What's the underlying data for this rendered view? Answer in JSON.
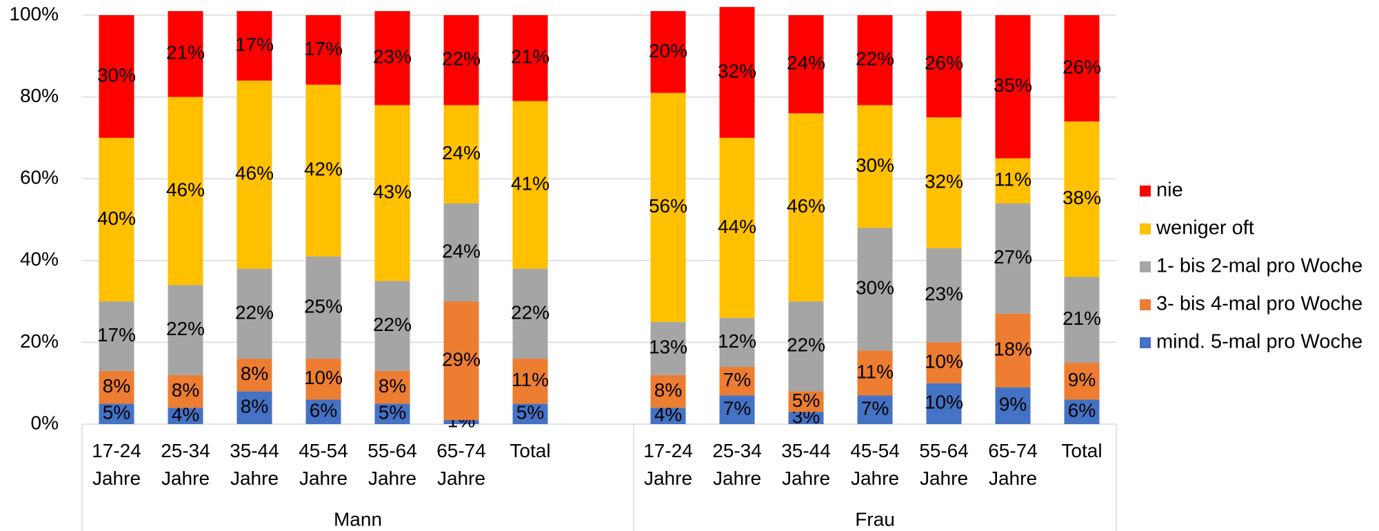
{
  "chart_data": {
    "type": "stacked_bar",
    "groups": [
      {
        "name": "Mann",
        "categories": [
          "17-24 Jahre",
          "25-34 Jahre",
          "35-44 Jahre",
          "45-54 Jahre",
          "55-64 Jahre",
          "65-74 Jahre",
          "Total"
        ]
      },
      {
        "name": "Frau",
        "categories": [
          "17-24 Jahre",
          "25-34 Jahre",
          "35-44 Jahre",
          "45-54 Jahre",
          "55-64 Jahre",
          "65-74 Jahre",
          "Total"
        ]
      }
    ],
    "series": [
      {
        "name": "mind. 5-mal pro Woche",
        "color": "#4472c4",
        "values": [
          5,
          4,
          8,
          6,
          5,
          1,
          5,
          4,
          7,
          3,
          7,
          10,
          9,
          6
        ],
        "value_labels": [
          "5%",
          "4%",
          "8%",
          "6%",
          "5%",
          "1%",
          "5%",
          "4%",
          "7%",
          "3%",
          "7%",
          "10%",
          "9%",
          "6%"
        ]
      },
      {
        "name": "3- bis 4-mal pro Woche",
        "color": "#ed7d31",
        "values": [
          8,
          8,
          8,
          10,
          8,
          29,
          11,
          8,
          7,
          5,
          11,
          10,
          18,
          9
        ],
        "value_labels": [
          "8%",
          "8%",
          "8%",
          "10%",
          "8%",
          "29%",
          "11%",
          "8%",
          "7%",
          "5%",
          "11%",
          "10%",
          "18%",
          "9%"
        ]
      },
      {
        "name": "1- bis 2-mal pro Woche",
        "color": "#a5a5a5",
        "values": [
          17,
          22,
          22,
          25,
          22,
          24,
          22,
          13,
          12,
          22,
          30,
          23,
          27,
          21
        ],
        "value_labels": [
          "17%",
          "22%",
          "22%",
          "25%",
          "22%",
          "24%",
          "22%",
          "13%",
          "12%",
          "22%",
          "30%",
          "23%",
          "27%",
          "21%"
        ]
      },
      {
        "name": "weniger oft",
        "color": "#ffc000",
        "values": [
          40,
          46,
          46,
          42,
          43,
          24,
          41,
          56,
          44,
          46,
          30,
          32,
          11,
          38
        ],
        "value_labels": [
          "40%",
          "46%",
          "46%",
          "42%",
          "43%",
          "24%",
          "41%",
          "56%",
          "44%",
          "46%",
          "30%",
          "32%",
          "11%",
          "38%"
        ]
      },
      {
        "name": "nie",
        "color": "#ff0000",
        "values": [
          30,
          21,
          17,
          17,
          23,
          22,
          21,
          20,
          32,
          24,
          22,
          26,
          35,
          26
        ],
        "value_labels": [
          "30%",
          "21%",
          "17%",
          "17%",
          "23%",
          "22%",
          "21%",
          "20%",
          "32%",
          "24%",
          "22%",
          "26%",
          "35%",
          "26%"
        ]
      }
    ],
    "ylim": [
      0,
      100
    ],
    "yticks": [
      {
        "value": 0,
        "label": "0%"
      },
      {
        "value": 20,
        "label": "20%"
      },
      {
        "value": 40,
        "label": "40%"
      },
      {
        "value": 60,
        "label": "60%"
      },
      {
        "value": 80,
        "label": "80%"
      },
      {
        "value": 100,
        "label": "100%"
      }
    ],
    "grid": true,
    "legend": "right"
  }
}
